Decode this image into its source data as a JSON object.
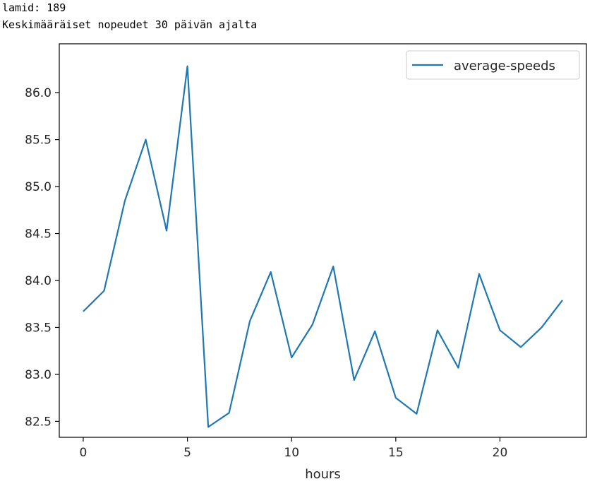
{
  "output": {
    "line1": "lamid: 189",
    "line2": "Keskimääräiset nopeudet 30 päivän ajalta"
  },
  "colors": {
    "series": "#1f77b4",
    "axes": "#000000",
    "background": "#ffffff"
  },
  "chart_data": {
    "type": "line",
    "title": "",
    "xlabel": "hours",
    "ylabel": "",
    "xlim": [
      -1.15,
      24.15
    ],
    "ylim": [
      82.33,
      86.52
    ],
    "xticks": [
      0,
      5,
      10,
      15,
      20
    ],
    "xtick_labels": [
      "0",
      "5",
      "10",
      "15",
      "20"
    ],
    "yticks": [
      82.5,
      83.0,
      83.5,
      84.0,
      84.5,
      85.0,
      85.5,
      86.0
    ],
    "ytick_labels": [
      "82.5",
      "83.0",
      "83.5",
      "84.0",
      "84.5",
      "85.0",
      "85.5",
      "86.0"
    ],
    "grid": false,
    "legend_position": "upper right",
    "x": [
      0,
      1,
      2,
      3,
      4,
      5,
      6,
      7,
      8,
      9,
      10,
      11,
      12,
      13,
      14,
      15,
      16,
      17,
      18,
      19,
      20,
      21,
      22,
      23
    ],
    "series": [
      {
        "name": "average-speeds",
        "values": [
          83.67,
          83.89,
          84.85,
          85.5,
          84.53,
          86.28,
          82.44,
          82.59,
          83.57,
          84.09,
          83.18,
          83.53,
          84.15,
          82.94,
          83.46,
          82.75,
          82.58,
          83.47,
          83.07,
          84.07,
          83.47,
          83.29,
          83.5,
          83.79
        ]
      }
    ]
  }
}
